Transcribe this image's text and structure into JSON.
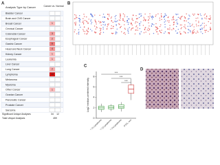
{
  "panel_a": {
    "label": "A",
    "title": "Analysis Type by Cancer",
    "column_header": "Cancer vs. Normal",
    "rows": [
      {
        "name": "Bladder Cancer"
      },
      {
        "name": "Brain and CNS Cancer"
      },
      {
        "name": "Breast Cancer",
        "up": 1
      },
      {
        "name": "Cervical Cancer"
      },
      {
        "name": "Colorectal Cancer",
        "up": 3
      },
      {
        "name": "Esophageal Cancer",
        "up": 2
      },
      {
        "name": "Gastric Cancer",
        "up": 6
      },
      {
        "name": "Head and Neck Cancer",
        "up": 4
      },
      {
        "name": "Kidney Cancer",
        "up": 1
      },
      {
        "name": "Leukemia",
        "up": 1
      },
      {
        "name": "Liver Cancer"
      },
      {
        "name": "Lung Cancer",
        "up": 2
      },
      {
        "name": "Lymphoma",
        "up": 14
      },
      {
        "name": "Melanoma"
      },
      {
        "name": "Myeloma"
      },
      {
        "name": "Other Cancer",
        "up": 1
      },
      {
        "name": "Ovarian Cancer"
      },
      {
        "name": "Pancreatic Cancer"
      },
      {
        "name": "Prostate Cancer"
      },
      {
        "name": "Sarcoma"
      }
    ],
    "significant": {
      "name": "Significant Unique Analyses",
      "up": 34,
      "down": 12
    },
    "total": {
      "name": "Total Unique Analyses",
      "value": 459
    }
  },
  "panel_b": {
    "label": "B"
  },
  "chart_data": {
    "type": "box",
    "label": "C",
    "ylabel": "Log2 median-centered intensity",
    "categories": [
      "CPC T1 Lymphoma",
      "CPC T2 Lymphoma",
      "CPC T4 Lymphoma",
      "PTCL, nos"
    ],
    "boxes": [
      {
        "min": 1.2,
        "q1": 1.7,
        "median": 2,
        "q3": 2.3,
        "max": 2.8,
        "color": "#3a9a3a"
      },
      {
        "min": 1.4,
        "q1": 1.8,
        "median": 2.1,
        "q3": 2.4,
        "max": 2.7,
        "color": "#3a9a3a"
      },
      {
        "min": 1.3,
        "q1": 1.9,
        "median": 2.2,
        "q3": 2.6,
        "max": 3.1,
        "color": "#3a9a3a"
      },
      {
        "min": 3.5,
        "q1": 4.8,
        "median": 5.6,
        "q3": 6.4,
        "max": 7.6,
        "color": "#d04040"
      }
    ],
    "ylim": [
      0,
      9
    ],
    "yticks": [
      0,
      2,
      4,
      6,
      8
    ],
    "annotations": [
      "***",
      "***",
      "***"
    ]
  },
  "panel_d": {
    "label": "D"
  }
}
